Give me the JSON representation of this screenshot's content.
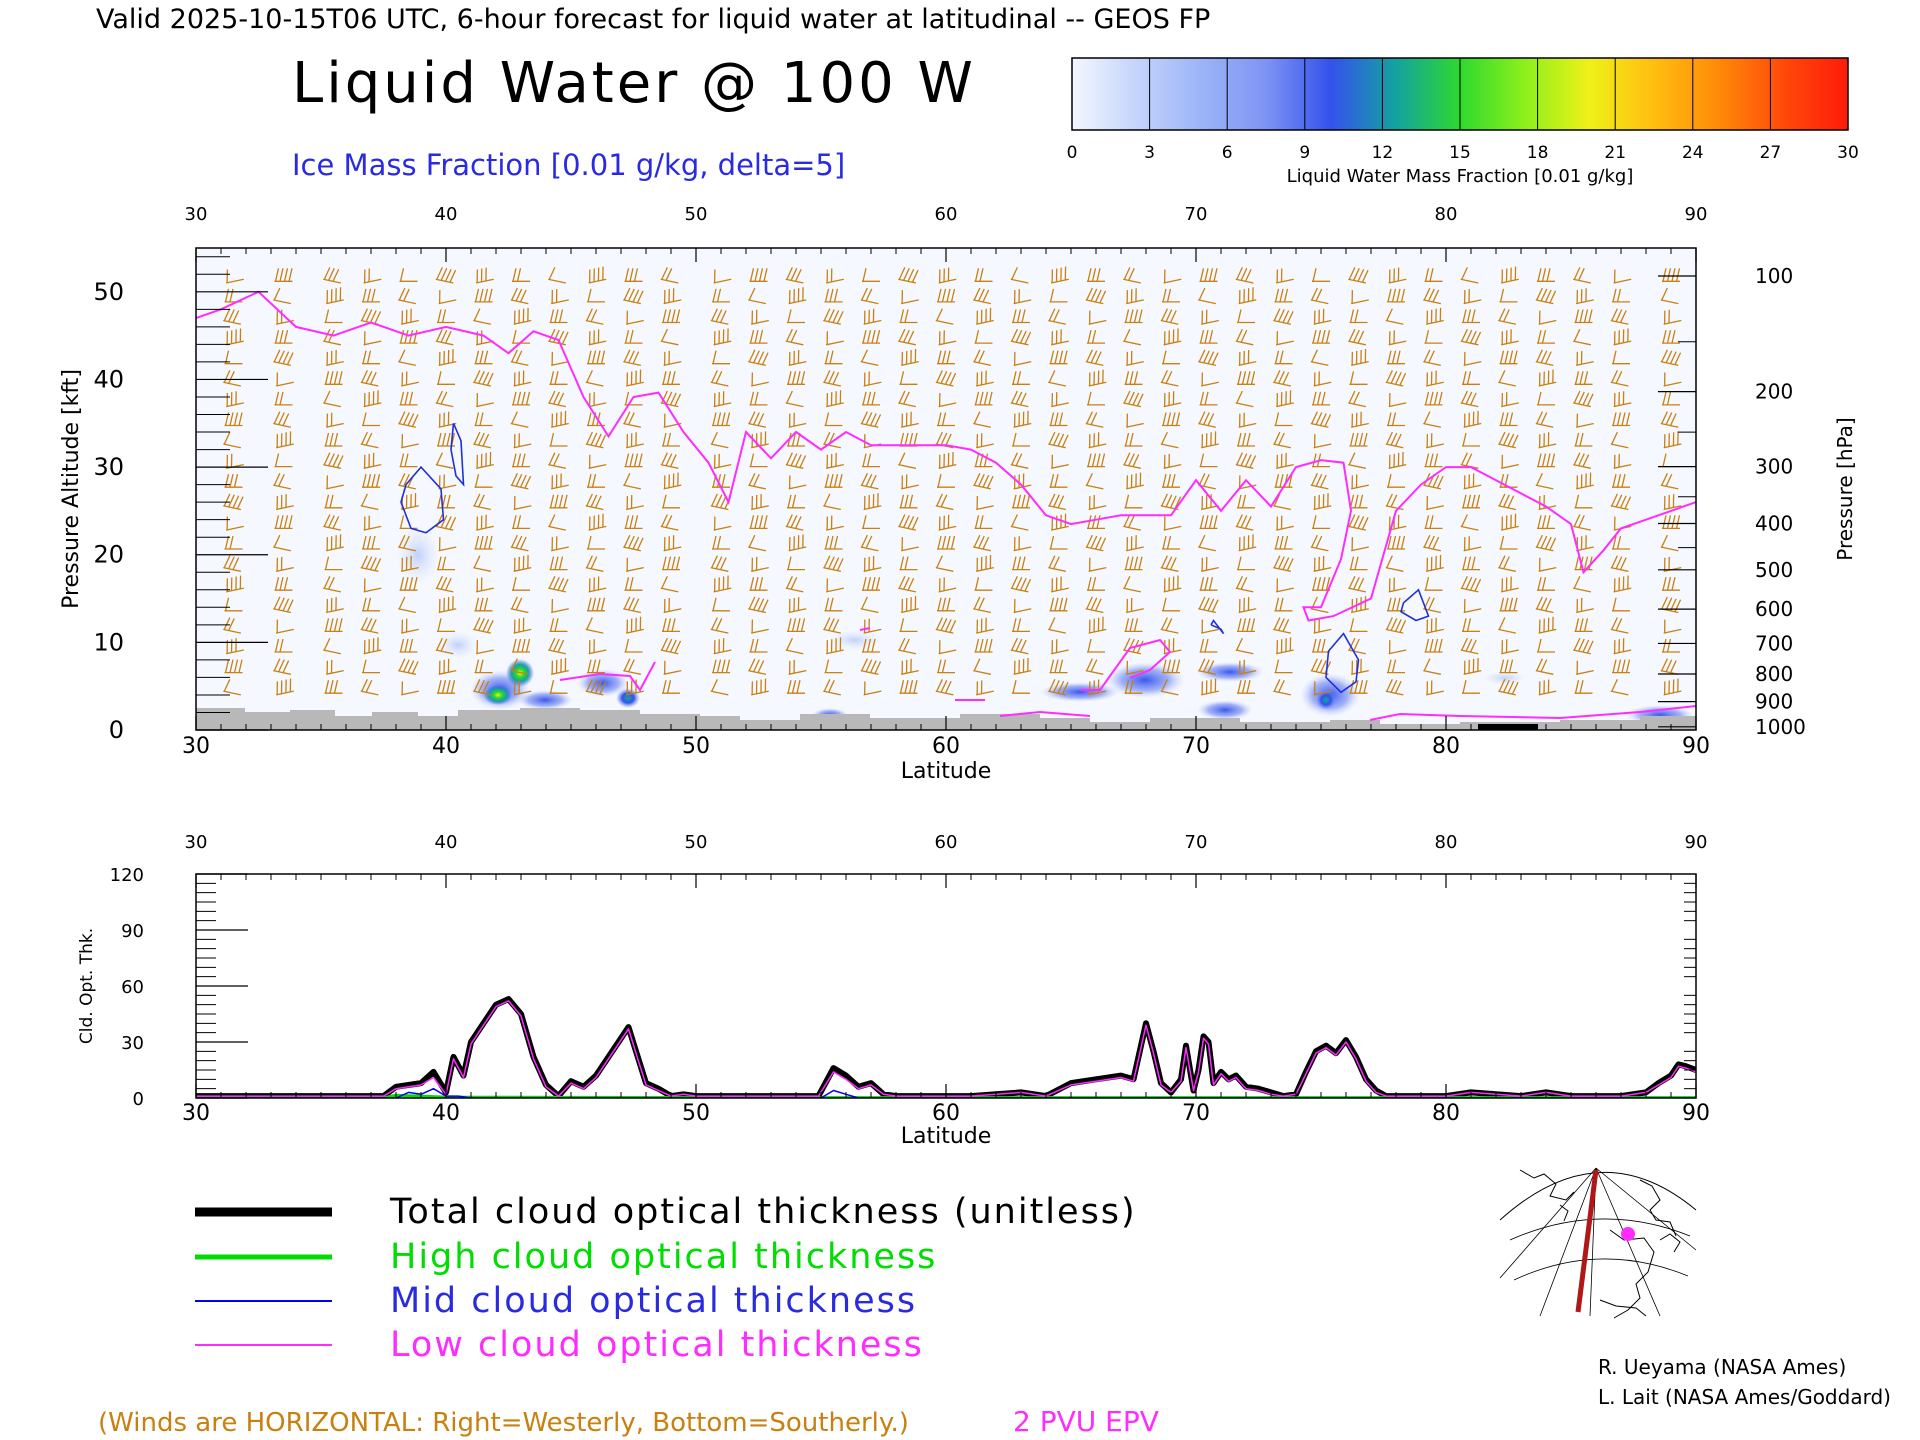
{
  "header": {
    "valid_line": "Valid 2025-10-15T06 UTC, 6-hour forecast for liquid water at latitudinal -- GEOS FP",
    "title": "Liquid Water @ 100 W",
    "subtitle": "Ice Mass Fraction [0.01 g/kg, delta=5]"
  },
  "colorbar": {
    "ticks": [
      "0",
      "3",
      "6",
      "9",
      "12",
      "15",
      "18",
      "21",
      "24",
      "27",
      "30"
    ],
    "label": "Liquid Water Mass Fraction [0.01 g/kg]",
    "colors": [
      "#f4f7ff",
      "#c4d4fb",
      "#9cb4f7",
      "#7e94f4",
      "#3452ec",
      "#14a2a0",
      "#2fd82f",
      "#8cf01c",
      "#f0f018",
      "#ffbe10",
      "#ff8a08",
      "#ff4a0a",
      "#ff1a0a"
    ]
  },
  "colors": {
    "pv_line": "#ff2cff",
    "ice_contour": "#2030d8",
    "wind_barb": "#c88010",
    "terrain": "#b8b8b8",
    "total_line": "#000000",
    "high_line": "#00dd00",
    "mid_line": "#0000ff",
    "low_line": "#ff2cff"
  },
  "top_panel": {
    "lat_ticks": [
      "30",
      "40",
      "50",
      "60",
      "70",
      "80",
      "90"
    ],
    "left_ticks": [
      "0",
      "10",
      "20",
      "30",
      "40",
      "50"
    ],
    "right_ticks": [
      "100",
      "200",
      "300",
      "400",
      "500",
      "600",
      "700",
      "800",
      "900",
      "1000"
    ],
    "y_label": "Pressure Altitude [kft]",
    "right_label": "Pressure [hPa]",
    "x_label": "Latitude"
  },
  "bottom_panel": {
    "lat_ticks": [
      "30",
      "40",
      "50",
      "60",
      "70",
      "80",
      "90"
    ],
    "y_ticks": [
      "0",
      "30",
      "60",
      "90",
      "120"
    ],
    "y_label": "Cld. Opt. Thk.",
    "x_label": "Latitude"
  },
  "legend": {
    "total": "Total cloud optical thickness (unitless)",
    "high": "High cloud optical thickness",
    "mid": "Mid cloud optical thickness",
    "low": "Low cloud optical thickness"
  },
  "footer": {
    "winds_note": "(Winds are HORIZONTAL: Right=Westerly, Bottom=Southerly.)",
    "pv_label": "2 PVU EPV",
    "credit1": "R. Ueyama (NASA Ames)",
    "credit2": "L. Lait (NASA Ames/Goddard)"
  },
  "chart_data": [
    {
      "type": "area",
      "title": "Liquid Water @ 100 W",
      "xlabel": "Latitude",
      "ylabel": "Pressure Altitude [kft]",
      "xlim": [
        30,
        90
      ],
      "ylim": [
        0,
        55
      ],
      "pressure_axis_hPa": [
        100,
        200,
        300,
        400,
        500,
        600,
        700,
        800,
        900,
        1000
      ],
      "series": [
        {
          "name": "2 PVU EPV",
          "x": [
            30,
            31,
            32.5,
            34,
            35.5,
            37,
            38.5,
            40,
            41.5,
            42.5,
            43.5,
            44.5,
            45.5,
            46.5,
            47.5,
            48.5,
            49.5,
            50.5,
            51.3,
            52,
            53,
            54,
            55,
            56,
            57,
            58,
            59,
            60,
            61,
            62,
            63,
            64,
            65,
            66,
            67,
            68,
            69,
            70,
            71,
            72,
            73,
            74,
            75,
            75.9,
            76.2,
            75.8,
            75,
            74.3,
            74.5,
            75.5,
            77,
            78,
            79,
            80,
            81,
            82,
            83,
            84,
            85,
            85.5,
            86.3,
            87,
            88,
            89,
            90
          ],
          "y": [
            47,
            48,
            50,
            46,
            45,
            46.5,
            45,
            46,
            45,
            43,
            45.5,
            44.5,
            38,
            33.5,
            38,
            38.5,
            34,
            30.5,
            26,
            34,
            31,
            34,
            32,
            34,
            32.5,
            32.5,
            32.5,
            32.5,
            32,
            30.5,
            28,
            24.5,
            23.5,
            24,
            24.5,
            24.5,
            24.5,
            28.5,
            25,
            28.5,
            25.5,
            30,
            30.8,
            30.5,
            25,
            19.5,
            14,
            14,
            12.5,
            13,
            15,
            25,
            28,
            30,
            30,
            28.5,
            27,
            25.5,
            23.5,
            18,
            20.5,
            23,
            24,
            25,
            26
          ]
        }
      ],
      "ice_contours": [
        {
          "x": [
            38.4,
            39,
            39.8,
            39.9,
            39.2,
            38.6,
            38.2,
            38.4
          ],
          "y": [
            28,
            30,
            27.5,
            24,
            22.5,
            23,
            26,
            28
          ]
        },
        {
          "x": [
            40.3,
            40.6,
            40.7,
            40.4,
            40.2,
            40.3
          ],
          "y": [
            35,
            33,
            28,
            29,
            32,
            35
          ]
        },
        {
          "x": [
            78.3,
            78.9,
            79.3,
            78.8,
            78.2,
            78.3
          ],
          "y": [
            14.5,
            16,
            13,
            12.5,
            13.5,
            14.5
          ]
        },
        {
          "x": [
            75.3,
            75.9,
            76.5,
            76.4,
            75.8,
            75.2,
            75.3
          ],
          "y": [
            9,
            11,
            8,
            5.5,
            4.3,
            6,
            9
          ]
        },
        {
          "x": [
            70.6,
            71,
            71.1,
            70.7,
            70.6
          ],
          "y": [
            12,
            11.5,
            11,
            12.5,
            12
          ]
        }
      ],
      "wind_columns_lat": [
        31.5,
        33.5,
        35.5,
        37,
        38.5,
        40,
        41.5,
        43,
        44.5,
        46,
        47.5,
        49,
        51,
        52.5,
        54,
        55.5,
        57,
        58.5,
        60,
        61.5,
        63,
        64.5,
        66,
        67.5,
        69,
        70.5,
        72,
        73.5,
        75,
        76.5,
        78,
        79.5,
        81,
        82.5,
        84,
        85.5,
        87,
        89
      ]
    },
    {
      "type": "line",
      "xlabel": "Latitude",
      "ylabel": "Cld. Opt. Thk.",
      "xlim": [
        30,
        90
      ],
      "ylim": [
        0,
        120
      ],
      "series": [
        {
          "name": "Total cloud optical thickness (unitless)",
          "x": [
            30,
            37.5,
            38,
            39,
            39.5,
            40,
            40.3,
            40.7,
            41,
            41.5,
            42,
            42.5,
            43,
            43.5,
            44,
            44.5,
            45,
            45.5,
            46,
            46.5,
            47,
            47.3,
            47.6,
            48,
            48.5,
            49,
            49.5,
            50,
            54.9,
            55.5,
            56,
            56.5,
            57,
            57.5,
            58,
            59,
            60,
            61,
            62,
            63,
            64,
            65,
            66,
            67,
            67.5,
            67.8,
            68,
            68.3,
            68.6,
            69,
            69.4,
            69.6,
            69.9,
            70.1,
            70.3,
            70.5,
            70.7,
            71,
            71.3,
            71.6,
            72,
            72.5,
            73,
            73.5,
            74,
            74.4,
            74.8,
            75.2,
            75.6,
            76,
            76.4,
            76.8,
            77.2,
            77.6,
            78,
            79,
            80,
            81,
            82,
            83,
            84,
            85,
            86,
            87,
            88,
            88.5,
            89,
            89.3,
            89.6,
            90
          ],
          "y": [
            1,
            1,
            6,
            8,
            14,
            3,
            22,
            12,
            30,
            40,
            50,
            53,
            45,
            22,
            7,
            1,
            9,
            6,
            12,
            22,
            32,
            38,
            25,
            8,
            5,
            1,
            2,
            1,
            1,
            16,
            12,
            6,
            8,
            2,
            1,
            1,
            1,
            1,
            2,
            3,
            1,
            8,
            10,
            12,
            10,
            28,
            40,
            25,
            8,
            3,
            10,
            28,
            4,
            15,
            33,
            30,
            8,
            14,
            10,
            12,
            6,
            5,
            3,
            1,
            2,
            14,
            25,
            28,
            24,
            31,
            22,
            10,
            4,
            1,
            1,
            1,
            1,
            3,
            2,
            1,
            3,
            1,
            1,
            1,
            3,
            8,
            12,
            18,
            17,
            15
          ]
        },
        {
          "name": "High cloud optical thickness",
          "x": [
            30,
            37.5,
            38,
            39,
            40,
            45,
            50,
            55,
            60,
            65,
            70,
            75,
            80,
            85,
            90
          ],
          "y": [
            0,
            0,
            1.5,
            1,
            0.5,
            0.3,
            0.2,
            0.2,
            0.2,
            0.2,
            0.2,
            0.2,
            0.2,
            0.2,
            0.2
          ]
        },
        {
          "name": "Mid cloud optical thickness",
          "x": [
            30,
            38,
            38.5,
            39,
            39.5,
            40,
            40.5,
            41,
            45,
            50,
            55,
            55.5,
            56,
            56.5,
            57,
            60,
            65,
            70,
            75,
            80,
            85,
            90
          ],
          "y": [
            0,
            0,
            3,
            2,
            5,
            1,
            1,
            0,
            0,
            0,
            0,
            4,
            2,
            0,
            0,
            0,
            0,
            0,
            0,
            0,
            0,
            0
          ]
        },
        {
          "name": "Low cloud optical thickness",
          "x": [
            30,
            37.5,
            38,
            39,
            39.5,
            40,
            40.3,
            40.7,
            41,
            41.5,
            42,
            42.5,
            43,
            43.5,
            44,
            44.5,
            45,
            45.5,
            46,
            46.5,
            47,
            47.3,
            47.6,
            48,
            48.5,
            49,
            49.5,
            50,
            54.9,
            55.5,
            56,
            56.5,
            57,
            57.5,
            58,
            59,
            60,
            61,
            62,
            63,
            64,
            65,
            66,
            67,
            67.5,
            67.8,
            68,
            68.3,
            68.6,
            69,
            69.4,
            69.6,
            69.9,
            70.1,
            70.3,
            70.5,
            70.7,
            71,
            71.3,
            71.6,
            72,
            72.5,
            73,
            73.5,
            74,
            74.4,
            74.8,
            75.2,
            75.6,
            76,
            76.4,
            76.8,
            77.2,
            77.6,
            78,
            79,
            80,
            81,
            82,
            83,
            84,
            85,
            86,
            87,
            88,
            88.5,
            89,
            89.3,
            89.6,
            90
          ],
          "y": [
            1,
            1,
            5,
            7,
            11,
            2,
            21,
            11,
            29,
            39,
            49,
            52,
            44,
            21,
            6,
            1,
            8,
            5,
            11,
            21,
            31,
            37,
            24,
            7,
            4,
            1,
            2,
            1,
            1,
            14,
            10,
            5,
            7,
            2,
            1,
            1,
            1,
            1,
            2,
            3,
            1,
            7,
            9,
            11,
            9,
            27,
            39,
            24,
            7,
            3,
            9,
            27,
            4,
            14,
            32,
            29,
            7,
            13,
            9,
            11,
            5,
            4,
            2,
            1,
            2,
            13,
            24,
            27,
            23,
            30,
            21,
            9,
            3,
            1,
            1,
            1,
            1,
            3,
            2,
            1,
            3,
            1,
            1,
            1,
            3,
            7,
            11,
            17,
            16,
            14
          ]
        }
      ]
    }
  ]
}
